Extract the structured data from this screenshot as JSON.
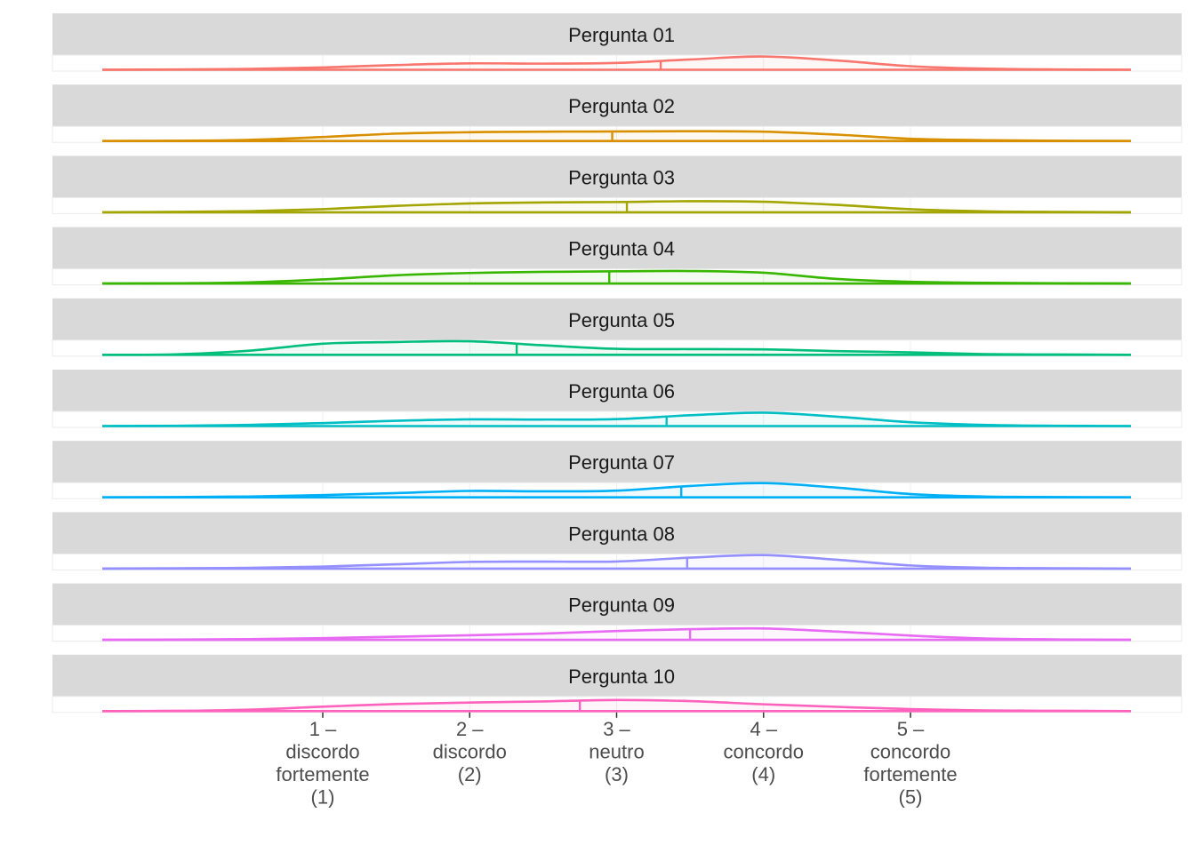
{
  "chart_data": {
    "type": "density-ridge",
    "x_range": [
      -0.5,
      6.5
    ],
    "x_ticks": [
      {
        "value": 1,
        "lines": [
          "1 –",
          "discordo",
          "fortemente",
          "(1)"
        ]
      },
      {
        "value": 2,
        "lines": [
          "2 –",
          "discordo",
          "(2)"
        ]
      },
      {
        "value": 3,
        "lines": [
          "3 –",
          "neutro",
          "(3)"
        ]
      },
      {
        "value": 4,
        "lines": [
          "4 –",
          "concordo",
          "(4)"
        ]
      },
      {
        "value": 5,
        "lines": [
          "5 –",
          "concordo",
          "fortemente",
          "(5)"
        ]
      }
    ],
    "density_x": [
      -0.5,
      0,
      0.5,
      1,
      1.5,
      2,
      2.5,
      3,
      3.5,
      4,
      4.5,
      5,
      5.5,
      6,
      6.5
    ],
    "panels": [
      {
        "label": "Pergunta 01",
        "color": "#F8766D",
        "mean": 3.3,
        "density": [
          0.0,
          0.02,
          0.06,
          0.16,
          0.33,
          0.45,
          0.43,
          0.48,
          0.72,
          0.93,
          0.65,
          0.25,
          0.08,
          0.02,
          0.0
        ]
      },
      {
        "label": "Pergunta 02",
        "color": "#D89000",
        "mean": 2.97,
        "density": [
          0.0,
          0.02,
          0.08,
          0.28,
          0.52,
          0.62,
          0.66,
          0.67,
          0.69,
          0.66,
          0.45,
          0.16,
          0.06,
          0.02,
          0.0
        ]
      },
      {
        "label": "Pergunta 03",
        "color": "#A3A500",
        "mean": 3.07,
        "density": [
          0.0,
          0.03,
          0.08,
          0.22,
          0.45,
          0.62,
          0.69,
          0.72,
          0.78,
          0.74,
          0.52,
          0.22,
          0.07,
          0.02,
          0.0
        ]
      },
      {
        "label": "Pergunta 04",
        "color": "#39B600",
        "mean": 2.95,
        "density": [
          0.0,
          0.02,
          0.08,
          0.29,
          0.58,
          0.74,
          0.82,
          0.86,
          0.88,
          0.76,
          0.32,
          0.12,
          0.05,
          0.02,
          0.0
        ]
      },
      {
        "label": "Pergunta 05",
        "color": "#00BF7D",
        "mean": 2.32,
        "density": [
          0.0,
          0.03,
          0.29,
          0.78,
          0.9,
          0.95,
          0.67,
          0.42,
          0.4,
          0.38,
          0.26,
          0.17,
          0.05,
          0.02,
          0.0
        ]
      },
      {
        "label": "Pergunta 06",
        "color": "#00BFC4",
        "mean": 3.34,
        "density": [
          0.0,
          0.02,
          0.08,
          0.21,
          0.37,
          0.47,
          0.46,
          0.49,
          0.76,
          0.94,
          0.66,
          0.27,
          0.08,
          0.02,
          0.0
        ]
      },
      {
        "label": "Pergunta 07",
        "color": "#00B0F6",
        "mean": 3.44,
        "density": [
          0.0,
          0.02,
          0.06,
          0.16,
          0.3,
          0.45,
          0.42,
          0.47,
          0.8,
          1.0,
          0.68,
          0.23,
          0.06,
          0.02,
          0.0
        ]
      },
      {
        "label": "Pergunta 08",
        "color": "#9590FF",
        "mean": 3.48,
        "density": [
          0.0,
          0.02,
          0.05,
          0.14,
          0.3,
          0.47,
          0.49,
          0.5,
          0.77,
          0.95,
          0.62,
          0.22,
          0.06,
          0.02,
          0.0
        ]
      },
      {
        "label": "Pergunta 09",
        "color": "#E76BF3",
        "mean": 3.5,
        "density": [
          0.0,
          0.02,
          0.05,
          0.12,
          0.22,
          0.32,
          0.44,
          0.62,
          0.75,
          0.8,
          0.58,
          0.3,
          0.1,
          0.03,
          0.0
        ]
      },
      {
        "label": "Pergunta 10",
        "color": "#FF62BC",
        "mean": 2.75,
        "density": [
          0.0,
          0.02,
          0.1,
          0.31,
          0.5,
          0.6,
          0.68,
          0.78,
          0.7,
          0.48,
          0.3,
          0.14,
          0.05,
          0.02,
          0.0
        ]
      }
    ]
  }
}
